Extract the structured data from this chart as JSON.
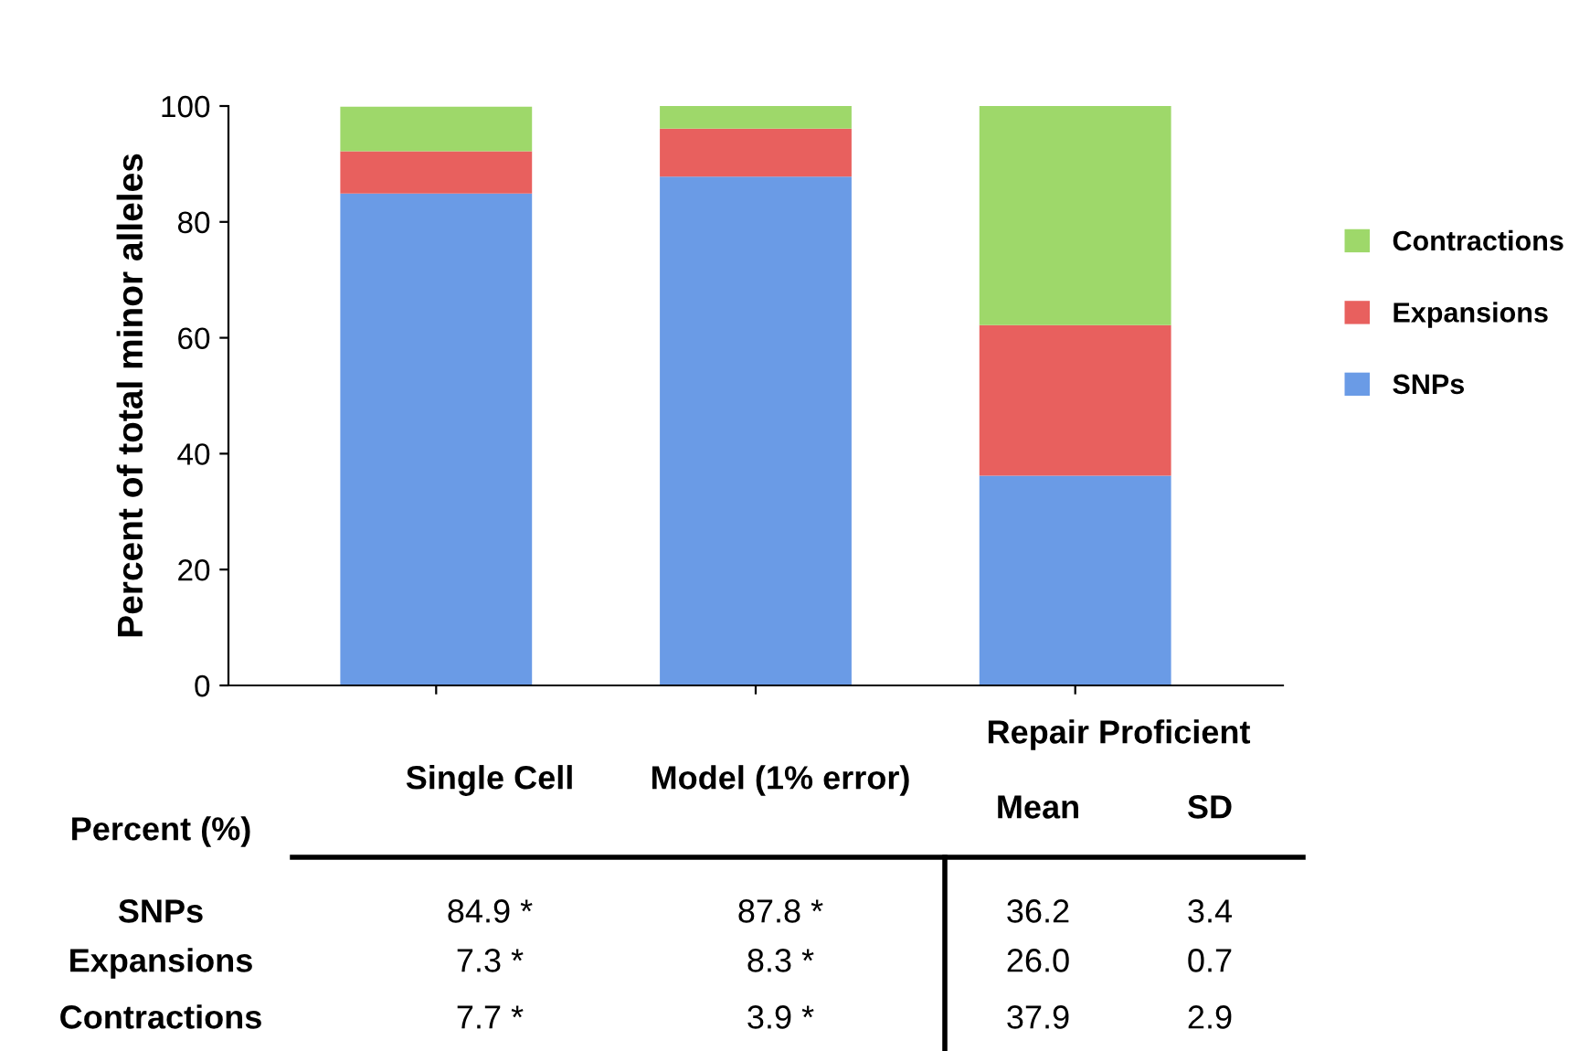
{
  "chart_data": {
    "type": "bar",
    "stacked": true,
    "ylabel": "Percent of total minor alleles",
    "categories": [
      "Single Cell",
      "Model (1% error)",
      "Repair Proficient"
    ],
    "ylim": [
      0,
      100
    ],
    "yticks": [
      0,
      20,
      40,
      60,
      80,
      100
    ],
    "grid": false,
    "legend": "right",
    "tick_labels": "y",
    "series": [
      {
        "name": "SNPs",
        "color": "#6a9be6",
        "values": [
          84.9,
          87.8,
          36.2
        ],
        "value_labels": [
          "84.9 *",
          "87.8 *",
          "36.2"
        ]
      },
      {
        "name": "Expansions",
        "color": "#e8605e",
        "values": [
          7.3,
          8.3,
          26.0
        ],
        "value_labels": [
          "7.3 *",
          "8.3 *",
          "26.0"
        ]
      },
      {
        "name": "Contractions",
        "color": "#9ed86a",
        "values": [
          7.7,
          3.9,
          37.9
        ],
        "value_labels": [
          "7.7 *",
          "3.9 *",
          "37.9"
        ]
      }
    ],
    "annotations": [
      "Percent (%)",
      "Mean",
      "SD",
      "3.4",
      "0.7",
      "2.9"
    ]
  }
}
